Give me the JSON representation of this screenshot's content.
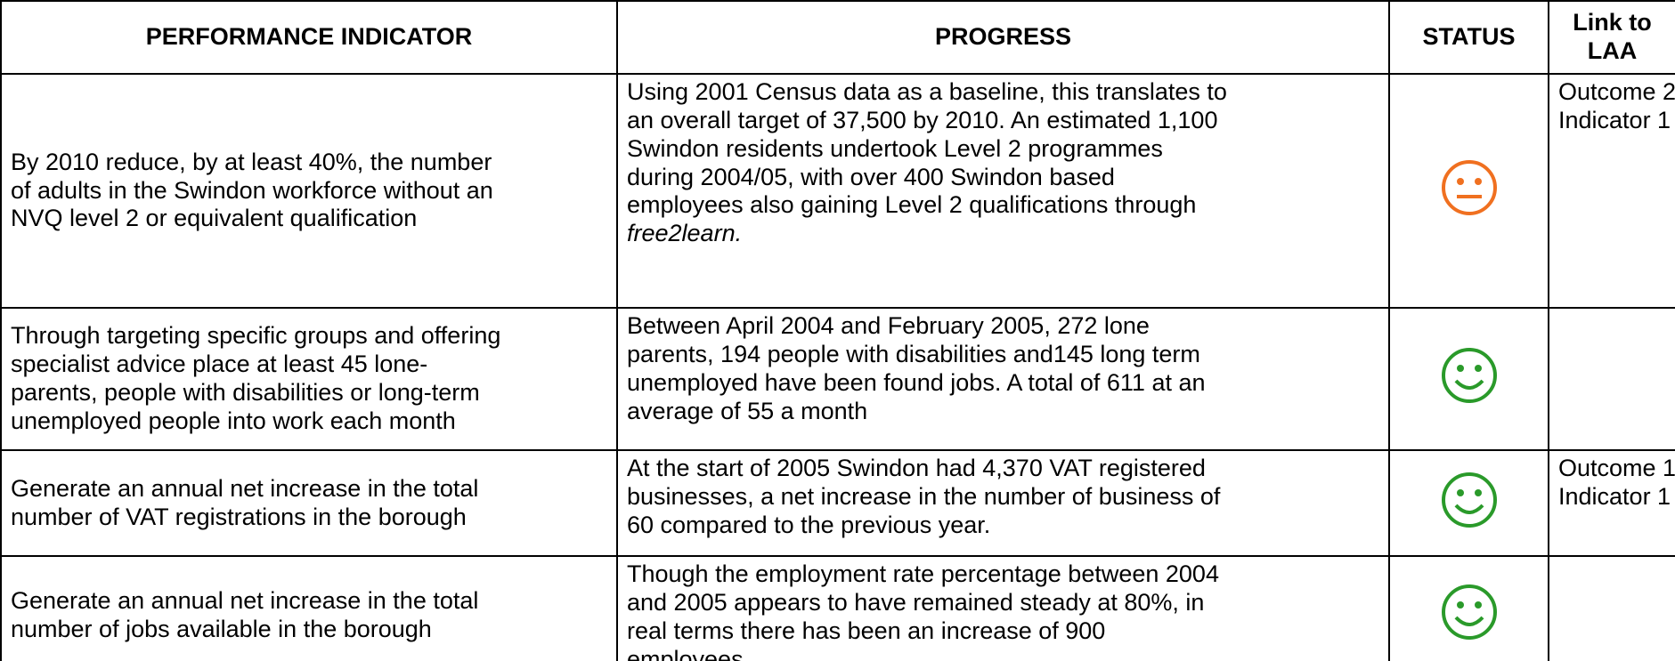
{
  "table": {
    "header": [
      "PERFORMANCE INDICATOR",
      "PROGRESS",
      "STATUS",
      [
        "Link to",
        "LAA"
      ]
    ],
    "rows": [
      {
        "indicator": [
          "By 2010 reduce, by at least 40%, the number",
          "of adults in the Swindon workforce without an",
          "NVQ level 2 or equivalent qualification"
        ],
        "progress": [
          "Using 2001 Census data as a baseline, this translates to",
          "an overall target of 37,500 by 2010.  An estimated 1,100",
          "Swindon residents undertook Level 2 programmes",
          "during 2004/05, with over 400 Swindon based",
          "employees also gaining Level 2 qualifications through"
        ],
        "progress_italic": "free2learn.",
        "link": [
          "Outcome 2",
          "Indicator 1"
        ]
      },
      {
        "indicator": [
          "Through targeting specific groups and offering",
          "specialist advice place at least 45 lone-",
          "parents, people with disabilities or long-term",
          "unemployed people into work each month"
        ],
        "progress": [
          "Between April 2004 and February  2005, 272 lone",
          "parents, 194 people with disabilities and145 long term",
          "unemployed have been found jobs. A total of 611 at an",
          "average of 55 a month"
        ]
      },
      {
        "indicator": [
          "Generate an annual net increase in the total",
          "number of VAT registrations in the borough"
        ],
        "progress": [
          "At the start of 2005 Swindon had 4,370 VAT registered",
          "businesses, a net increase in the number of business of",
          "60 compared to the previous year."
        ],
        "link": [
          "Outcome 1",
          "Indicator 1"
        ]
      },
      {
        "indicator": [
          "Generate an annual net increase in the total",
          "number of jobs available in the borough"
        ],
        "progress": [
          "Though the employment rate percentage between 2004",
          "and 2005 appears to have remained steady at 80%, in",
          "real terms there has been an increase of 900",
          "employees."
        ]
      }
    ]
  }
}
